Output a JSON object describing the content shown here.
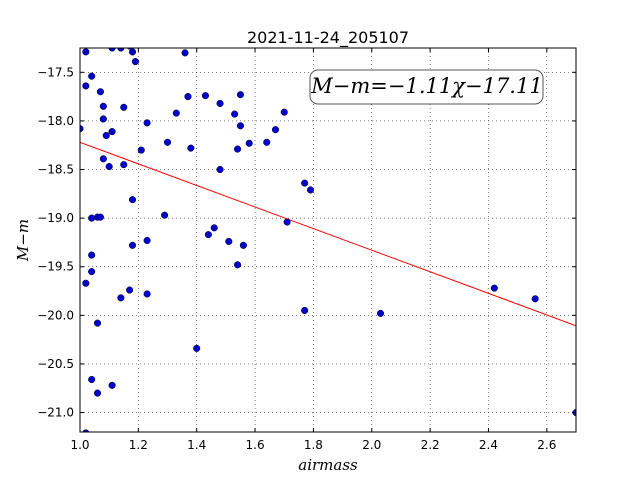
{
  "chart_data": {
    "type": "scatter",
    "title": "2021-11-24_205107",
    "xlabel": "airmass",
    "ylabel": "M−m",
    "xlim": [
      1.0,
      2.7
    ],
    "ylim": [
      -21.2,
      -17.25
    ],
    "y_inverted": true,
    "grid": true,
    "xticks": [
      1.0,
      1.2,
      1.4,
      1.6,
      1.8,
      2.0,
      2.2,
      2.4,
      2.6
    ],
    "xtick_labels": [
      "1.0",
      "1.2",
      "1.4",
      "1.6",
      "1.8",
      "2.0",
      "2.2",
      "2.4",
      "2.6"
    ],
    "yticks": [
      -17.5,
      -18.0,
      -18.5,
      -19.0,
      -19.5,
      -20.0,
      -20.5,
      -21.0
    ],
    "ytick_labels": [
      "−17.5",
      "−18.0",
      "−18.5",
      "−19.0",
      "−19.5",
      "−20.0",
      "−20.5",
      "−21.0"
    ],
    "annotation": "M−m=−1.11χ−17.11",
    "annotation_position": "top-right",
    "fit_line": {
      "slope": -1.11,
      "intercept": -17.11,
      "color": "#ff0000"
    },
    "point_color": "#0000cc",
    "points": [
      [
        1.02,
        -17.29
      ],
      [
        1.04,
        -17.54
      ],
      [
        1.02,
        -17.64
      ],
      [
        1.07,
        -17.7
      ],
      [
        1.08,
        -17.85
      ],
      [
        1.08,
        -17.98
      ],
      [
        1.0,
        -18.08
      ],
      [
        1.11,
        -18.11
      ],
      [
        1.09,
        -18.15
      ],
      [
        1.08,
        -18.39
      ],
      [
        1.1,
        -18.47
      ],
      [
        1.15,
        -18.45
      ],
      [
        1.15,
        -17.86
      ],
      [
        1.11,
        -17.25
      ],
      [
        1.14,
        -17.25
      ],
      [
        1.17,
        -17.23
      ],
      [
        1.18,
        -17.29
      ],
      [
        1.19,
        -17.39
      ],
      [
        1.23,
        -18.02
      ],
      [
        1.21,
        -18.3
      ],
      [
        1.3,
        -18.22
      ],
      [
        1.33,
        -17.92
      ],
      [
        1.36,
        -17.3
      ],
      [
        1.37,
        -17.75
      ],
      [
        1.38,
        -18.28
      ],
      [
        1.43,
        -17.74
      ],
      [
        1.48,
        -17.82
      ],
      [
        1.48,
        -18.5
      ],
      [
        1.53,
        -17.93
      ],
      [
        1.55,
        -17.73
      ],
      [
        1.55,
        -18.05
      ],
      [
        1.54,
        -18.29
      ],
      [
        1.58,
        -18.23
      ],
      [
        1.64,
        -18.22
      ],
      [
        1.67,
        -18.09
      ],
      [
        1.7,
        -17.91
      ],
      [
        1.77,
        -18.64
      ],
      [
        1.79,
        -18.71
      ],
      [
        1.71,
        -19.04
      ],
      [
        1.04,
        -19.0
      ],
      [
        1.06,
        -18.99
      ],
      [
        1.07,
        -18.99
      ],
      [
        1.18,
        -18.81
      ],
      [
        1.29,
        -18.97
      ],
      [
        1.23,
        -19.23
      ],
      [
        1.18,
        -19.28
      ],
      [
        1.04,
        -19.38
      ],
      [
        1.04,
        -19.55
      ],
      [
        1.02,
        -19.67
      ],
      [
        1.17,
        -19.74
      ],
      [
        1.23,
        -19.78
      ],
      [
        1.14,
        -19.82
      ],
      [
        1.06,
        -20.08
      ],
      [
        1.44,
        -19.17
      ],
      [
        1.46,
        -19.1
      ],
      [
        1.51,
        -19.24
      ],
      [
        1.56,
        -19.28
      ],
      [
        1.54,
        -19.48
      ],
      [
        1.77,
        -19.95
      ],
      [
        1.4,
        -20.34
      ],
      [
        2.03,
        -19.98
      ],
      [
        2.42,
        -19.72
      ],
      [
        2.56,
        -19.83
      ],
      [
        1.04,
        -20.66
      ],
      [
        1.11,
        -20.72
      ],
      [
        1.06,
        -20.8
      ],
      [
        1.02,
        -21.21
      ],
      [
        2.7,
        -21.0
      ]
    ]
  }
}
